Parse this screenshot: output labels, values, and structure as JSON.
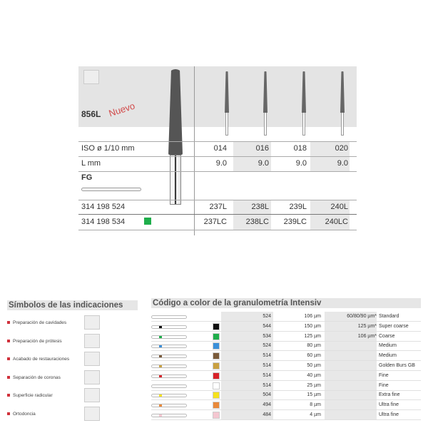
{
  "product": {
    "model": "856L",
    "badge": "Nuevo",
    "shank_type": "FG",
    "iso_label": "ISO ø 1/10 mm",
    "length_label": "L mm",
    "sizes": [
      "014",
      "016",
      "018",
      "020"
    ],
    "lengths": [
      "9.0",
      "9.0",
      "9.0",
      "9.0"
    ],
    "ref_rows": [
      {
        "code": "314 198 524",
        "color": "",
        "items": [
          "237L",
          "238L",
          "239L",
          "240L"
        ]
      },
      {
        "code": "314 198 534",
        "color": "#1fae4b",
        "items": [
          "237LC",
          "238LC",
          "239LC",
          "240LC"
        ]
      }
    ]
  },
  "indications": {
    "title": "Símbolos de las indicaciones",
    "items": [
      {
        "label": "Preparación de cavidades",
        "icon": "cavity-preparation-icon"
      },
      {
        "label": "Preparación de prótesis",
        "icon": "prosthesis-preparation-icon"
      },
      {
        "label": "Acabado de restauraciones",
        "icon": "restoration-finishing-icon"
      },
      {
        "label": "Separación de coronas",
        "icon": "crown-separation-icon"
      },
      {
        "label": "Superficie radicular",
        "icon": "root-surface-icon"
      },
      {
        "label": "Ortodoncia",
        "icon": "orthodontics-icon"
      }
    ]
  },
  "granulometry": {
    "title": "Código a color de la granulometría Intensiv",
    "rows": [
      {
        "color": "",
        "code": "524",
        "grain": "106 µm",
        "alt": "60/80/90 µm*",
        "name": "Standard"
      },
      {
        "color": "#111111",
        "code": "544",
        "grain": "150 µm",
        "alt": "125 µm*",
        "name": "Super coarse"
      },
      {
        "color": "#1fae4b",
        "code": "534",
        "grain": "125 µm",
        "alt": "106 µm*",
        "name": "Coarse"
      },
      {
        "color": "#3a8fd9",
        "code": "524",
        "grain": "80 µm",
        "alt": "",
        "name": "Medium"
      },
      {
        "color": "#7a5a3a",
        "code": "514",
        "grain": "60 µm",
        "alt": "",
        "name": "Medium"
      },
      {
        "color": "#c9a040",
        "code": "514",
        "grain": "50 µm",
        "alt": "",
        "name": "Golden Burs GB"
      },
      {
        "color": "#d8232a",
        "code": "514",
        "grain": "40 µm",
        "alt": "",
        "name": "Fine"
      },
      {
        "color": "#ffffff",
        "code": "514",
        "grain": "25 µm",
        "alt": "",
        "name": "Fine"
      },
      {
        "color": "#f5e11c",
        "code": "504",
        "grain": "15 µm",
        "alt": "",
        "name": "Extra fine"
      },
      {
        "color": "#e8893a",
        "code": "494",
        "grain": "8 µm",
        "alt": "",
        "name": "Ultra fine"
      },
      {
        "color": "#f4c6d0",
        "code": "484",
        "grain": "4 µm",
        "alt": "",
        "name": "Ultra fine"
      }
    ]
  }
}
